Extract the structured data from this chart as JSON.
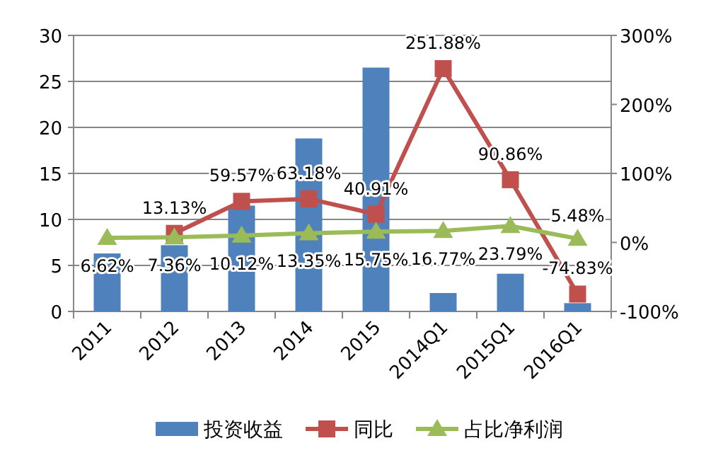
{
  "chart_data": {
    "type": "bar",
    "categories": [
      "2011",
      "2012",
      "2013",
      "2014",
      "2015",
      "2014Q1",
      "2015Q1",
      "2016Q1"
    ],
    "series": [
      {
        "name": "投资收益",
        "color": "#4f81bd",
        "values": [
          6.3,
          7.2,
          11.5,
          18.8,
          26.5,
          2.0,
          4.1,
          0.9
        ]
      },
      {
        "name": "同比",
        "type": "line",
        "axis": "y2",
        "color": "#c0504d",
        "marker": "square",
        "values": [
          null,
          13.13,
          59.57,
          63.18,
          40.91,
          251.88,
          90.86,
          -74.83
        ],
        "value_labels": [
          null,
          "13.13%",
          "59.57%",
          "63.18%",
          "40.91%",
          "251.88%",
          "90.86%",
          "-74.83%"
        ]
      },
      {
        "name": "占比净利润",
        "type": "line",
        "axis": "y2",
        "color": "#9bbb59",
        "marker": "triangle",
        "values": [
          6.62,
          7.36,
          10.12,
          13.35,
          15.75,
          16.77,
          23.79,
          5.48
        ],
        "value_labels": [
          "6.62%",
          "7.36%",
          "10.12%",
          "13.35%",
          "15.75%",
          "16.77%",
          "23.79%",
          "5.48%"
        ]
      }
    ],
    "ylim": [
      0,
      30
    ],
    "yticks": [
      0,
      5,
      10,
      15,
      20,
      25,
      30
    ],
    "y2lim": [
      -100,
      300
    ],
    "y2ticks": [
      {
        "value": -100,
        "label": "-100%"
      },
      {
        "value": 0,
        "label": "0%"
      },
      {
        "value": 100,
        "label": "100%"
      },
      {
        "value": 200,
        "label": "200%"
      },
      {
        "value": 300,
        "label": "300%"
      }
    ],
    "grid": "y",
    "legend": "bottom"
  }
}
